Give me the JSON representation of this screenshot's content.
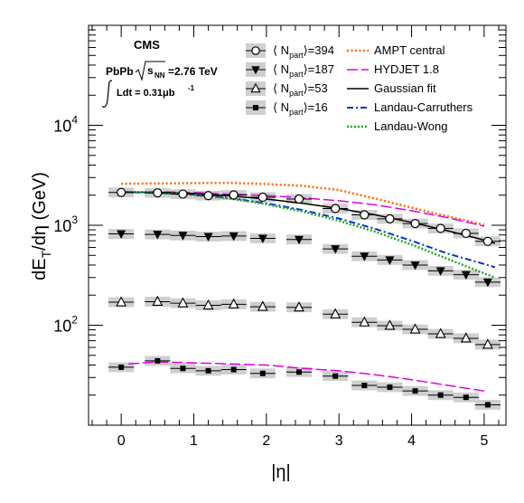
{
  "chart_data": {
    "type": "scatter",
    "experiment": "CMS",
    "collision_text": "PbPb",
    "energy_text": "=2.76 TeV",
    "lumi_text": "Ldt = 0.31μb",
    "lumi_exp": "-1",
    "xlabel": "|η|",
    "ylabel_parts": {
      "main": "dE",
      "sub": "T",
      "tail": "/dη (GeV)"
    },
    "x_range": [
      -0.45,
      5.3
    ],
    "y_range": [
      10,
      100000
    ],
    "y_scale": "log",
    "x_ticks": [
      "0",
      "1",
      "2",
      "3",
      "4",
      "5"
    ],
    "y_tick_labels": [
      {
        "base": "10",
        "exp": "2"
      },
      {
        "base": "10",
        "exp": "3"
      },
      {
        "base": "10",
        "exp": "4"
      }
    ],
    "legend_position": "top",
    "series": [
      {
        "name": "⟨ N_part ⟩ = 394",
        "npart": "394",
        "marker": "open-circle",
        "x": [
          0,
          0.5,
          0.85,
          1.2,
          1.55,
          1.95,
          2.45,
          2.95,
          3.35,
          3.7,
          4.05,
          4.4,
          4.75,
          5.05
        ],
        "y": [
          2130,
          2110,
          2050,
          1980,
          2010,
          1910,
          1830,
          1470,
          1270,
          1160,
          1040,
          930,
          830,
          690
        ]
      },
      {
        "name": "⟨ N_part ⟩ = 187",
        "npart": "187",
        "marker": "filled-triangle-down",
        "x": [
          0,
          0.5,
          0.85,
          1.2,
          1.55,
          1.95,
          2.45,
          2.95,
          3.35,
          3.7,
          4.05,
          4.4,
          4.75,
          5.05
        ],
        "y": [
          820,
          810,
          790,
          770,
          780,
          740,
          720,
          580,
          490,
          450,
          400,
          350,
          320,
          270
        ]
      },
      {
        "name": "⟨ N_part ⟩ = 53",
        "npart": "53",
        "marker": "open-triangle-up",
        "x": [
          0,
          0.5,
          0.85,
          1.2,
          1.55,
          1.95,
          2.45,
          2.95,
          3.35,
          3.7,
          4.05,
          4.4,
          4.75,
          5.05
        ],
        "y": [
          170,
          172,
          166,
          158,
          162,
          153,
          151,
          129,
          107,
          99,
          91,
          82,
          74,
          64
        ]
      },
      {
        "name": "⟨ N_part ⟩ = 16",
        "npart": "16",
        "marker": "filled-square",
        "x": [
          0,
          0.5,
          0.85,
          1.2,
          1.55,
          1.95,
          2.45,
          2.95,
          3.35,
          3.7,
          4.05,
          4.4,
          4.75,
          5.05
        ],
        "y": [
          38,
          44,
          37,
          35,
          36,
          33,
          34,
          31,
          25,
          24,
          22,
          20,
          19,
          16
        ]
      }
    ],
    "curves": [
      {
        "name": "AMPT central",
        "color": "#ff6a00",
        "dash": "2,2.5",
        "width": 2.5,
        "x": [
          0,
          0.5,
          1,
          1.5,
          2,
          2.5,
          3,
          3.5,
          4,
          4.5,
          5
        ],
        "y": [
          2600,
          2620,
          2640,
          2660,
          2580,
          2480,
          2250,
          1850,
          1500,
          1230,
          1010
        ]
      },
      {
        "name": "HYDJET 1.8",
        "color": "#e000e0",
        "dash": "12,4",
        "width": 1.5,
        "x": [
          0,
          0.5,
          1,
          1.5,
          2,
          2.5,
          3,
          3.5,
          4,
          4.5,
          5
        ],
        "y": [
          2120,
          2160,
          2120,
          2050,
          1980,
          1880,
          1760,
          1600,
          1400,
          1190,
          980
        ]
      },
      {
        "name": "HYDJET 1.8",
        "color": "#e000e0",
        "dash": "12,4",
        "width": 1.5,
        "x": [
          0.1,
          0.5,
          1,
          1.5,
          2,
          2.5,
          3,
          3.5,
          4,
          4.5,
          5
        ],
        "y": [
          41,
          43,
          42,
          41,
          40,
          37,
          35,
          32,
          28.5,
          25,
          22
        ]
      },
      {
        "name": "Gaussian fit",
        "color": "#000000",
        "dash": "",
        "width": 1.5,
        "x": [
          0,
          0.5,
          1,
          1.5,
          2,
          2.5,
          3,
          3.5,
          4,
          4.5,
          5,
          5.15
        ],
        "y": [
          2160,
          2140,
          2080,
          1970,
          1830,
          1660,
          1470,
          1270,
          1070,
          880,
          710,
          660
        ]
      },
      {
        "name": "Landau-Carruthers",
        "color": "#0033cc",
        "dash": "7,3,2,3",
        "width": 2,
        "x": [
          0,
          0.5,
          1,
          1.5,
          2,
          2.5,
          3,
          3.5,
          4,
          4.5,
          5,
          5.15
        ],
        "y": [
          2150,
          2110,
          2030,
          1870,
          1660,
          1420,
          1170,
          920,
          700,
          520,
          410,
          380
        ]
      },
      {
        "name": "Landau-Wong",
        "color": "#22aa22",
        "dash": "2,2",
        "width": 2.5,
        "x": [
          0,
          0.5,
          1,
          1.5,
          2,
          2.5,
          3,
          3.5,
          4,
          4.5,
          5,
          5.15
        ],
        "y": [
          2150,
          2110,
          2010,
          1850,
          1620,
          1370,
          1110,
          860,
          640,
          460,
          330,
          300
        ]
      }
    ]
  }
}
